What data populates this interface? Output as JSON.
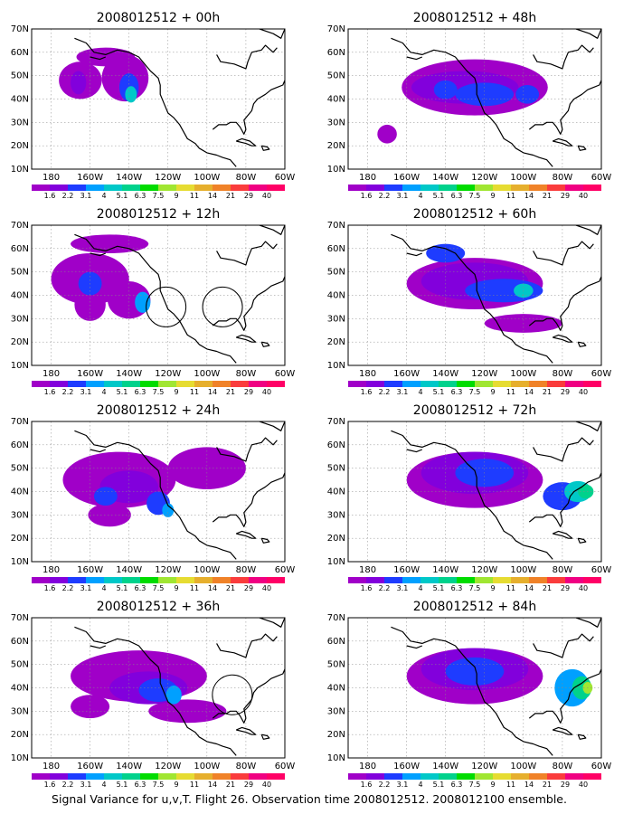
{
  "caption": "Signal Variance for u,v,T. Flight 26. Observation time 2008012512. 2008012100 ensemble.",
  "colorbar": {
    "colors": [
      "#a000c8",
      "#8200dc",
      "#1e3cff",
      "#00a0ff",
      "#00c8c8",
      "#00d28c",
      "#00dc00",
      "#a0e632",
      "#e6dc32",
      "#e6af2d",
      "#f08228",
      "#fa3c3c",
      "#f00082"
    ],
    "labels": [
      "1.6",
      "2.2",
      "3.1",
      "4",
      "5.1",
      "6.3",
      "7.5",
      "9",
      "11",
      "14",
      "21",
      "29",
      "40"
    ]
  },
  "chart_data": {
    "type": "heatmap",
    "map_extent": {
      "lon": [
        "190W",
        "60W"
      ],
      "lat": [
        "10N",
        "70N"
      ]
    },
    "x_tick_labels": [
      "180",
      "160W",
      "140W",
      "120W",
      "100W",
      "80W",
      "60W"
    ],
    "y_tick_labels": [
      "70N",
      "60N",
      "50N",
      "40N",
      "30N",
      "20N",
      "10N"
    ],
    "panels": [
      {
        "title": "2008012512 + 00h",
        "max_level": "7.5",
        "circles": [],
        "blobs": [
          {
            "lon": -165,
            "lat": 48,
            "w": 22,
            "h": 16,
            "level": 1
          },
          {
            "lon": -152,
            "lat": 58,
            "w": 30,
            "h": 8,
            "level": 1
          },
          {
            "lon": -142,
            "lat": 49,
            "w": 24,
            "h": 20,
            "level": 1
          },
          {
            "lon": -140,
            "lat": 45,
            "w": 10,
            "h": 12,
            "level": 3
          },
          {
            "lon": -139,
            "lat": 42,
            "w": 6,
            "h": 7,
            "level": 5
          },
          {
            "lon": -166,
            "lat": 47,
            "w": 8,
            "h": 10,
            "level": 2
          }
        ]
      },
      {
        "title": "2008012512 + 12h",
        "max_level": "6.3",
        "circles": [
          {
            "lon": -121,
            "lat": 35
          },
          {
            "lon": -92,
            "lat": 35
          }
        ],
        "blobs": [
          {
            "lon": -160,
            "lat": 47,
            "w": 40,
            "h": 22,
            "level": 1
          },
          {
            "lon": -160,
            "lat": 36,
            "w": 16,
            "h": 14,
            "level": 1
          },
          {
            "lon": -140,
            "lat": 38,
            "w": 22,
            "h": 16,
            "level": 1
          },
          {
            "lon": -150,
            "lat": 62,
            "w": 40,
            "h": 8,
            "level": 1
          },
          {
            "lon": -160,
            "lat": 45,
            "w": 12,
            "h": 10,
            "level": 3
          },
          {
            "lon": -133,
            "lat": 37,
            "w": 8,
            "h": 9,
            "level": 4
          }
        ]
      },
      {
        "title": "2008012512 + 24h",
        "max_level": "6.3",
        "circles": [],
        "blobs": [
          {
            "lon": -145,
            "lat": 45,
            "w": 58,
            "h": 24,
            "level": 1
          },
          {
            "lon": -150,
            "lat": 30,
            "w": 22,
            "h": 10,
            "level": 1
          },
          {
            "lon": -100,
            "lat": 50,
            "w": 40,
            "h": 18,
            "level": 1
          },
          {
            "lon": -140,
            "lat": 42,
            "w": 30,
            "h": 14,
            "level": 2
          },
          {
            "lon": -152,
            "lat": 38,
            "w": 12,
            "h": 8,
            "level": 3
          },
          {
            "lon": -125,
            "lat": 35,
            "w": 12,
            "h": 10,
            "level": 3
          },
          {
            "lon": -120,
            "lat": 32,
            "w": 6,
            "h": 6,
            "level": 4
          }
        ]
      },
      {
        "title": "2008012512 + 36h",
        "max_level": "6.3",
        "circles": [
          {
            "lon": -87,
            "lat": 37
          }
        ],
        "blobs": [
          {
            "lon": -135,
            "lat": 45,
            "w": 70,
            "h": 22,
            "level": 1
          },
          {
            "lon": -160,
            "lat": 32,
            "w": 20,
            "h": 10,
            "level": 1
          },
          {
            "lon": -110,
            "lat": 30,
            "w": 40,
            "h": 10,
            "level": 1
          },
          {
            "lon": -130,
            "lat": 40,
            "w": 40,
            "h": 14,
            "level": 2
          },
          {
            "lon": -125,
            "lat": 39,
            "w": 20,
            "h": 10,
            "level": 3
          },
          {
            "lon": -117,
            "lat": 37,
            "w": 8,
            "h": 8,
            "level": 4
          }
        ]
      },
      {
        "title": "2008012512 + 48h",
        "max_level": "6.3",
        "circles": [],
        "blobs": [
          {
            "lon": -125,
            "lat": 45,
            "w": 75,
            "h": 24,
            "level": 1
          },
          {
            "lon": -170,
            "lat": 25,
            "w": 10,
            "h": 8,
            "level": 1
          },
          {
            "lon": -130,
            "lat": 45,
            "w": 55,
            "h": 14,
            "level": 2
          },
          {
            "lon": -120,
            "lat": 42,
            "w": 30,
            "h": 10,
            "level": 3
          },
          {
            "lon": -140,
            "lat": 44,
            "w": 12,
            "h": 8,
            "level": 3
          },
          {
            "lon": -98,
            "lat": 42,
            "w": 12,
            "h": 8,
            "level": 3
          }
        ]
      },
      {
        "title": "2008012512 + 60h",
        "max_level": "7.5",
        "circles": [],
        "blobs": [
          {
            "lon": -125,
            "lat": 45,
            "w": 70,
            "h": 22,
            "level": 1
          },
          {
            "lon": -100,
            "lat": 28,
            "w": 40,
            "h": 8,
            "level": 1
          },
          {
            "lon": -125,
            "lat": 46,
            "w": 55,
            "h": 16,
            "level": 2
          },
          {
            "lon": -110,
            "lat": 42,
            "w": 40,
            "h": 10,
            "level": 3
          },
          {
            "lon": -140,
            "lat": 58,
            "w": 20,
            "h": 8,
            "level": 3
          },
          {
            "lon": -100,
            "lat": 42,
            "w": 10,
            "h": 6,
            "level": 5
          }
        ]
      },
      {
        "title": "2008012512 + 72h",
        "max_level": "9",
        "circles": [],
        "blobs": [
          {
            "lon": -125,
            "lat": 45,
            "w": 70,
            "h": 24,
            "level": 1
          },
          {
            "lon": -125,
            "lat": 48,
            "w": 55,
            "h": 18,
            "level": 2
          },
          {
            "lon": -120,
            "lat": 48,
            "w": 30,
            "h": 12,
            "level": 3
          },
          {
            "lon": -80,
            "lat": 38,
            "w": 20,
            "h": 12,
            "level": 3
          },
          {
            "lon": -72,
            "lat": 40,
            "w": 14,
            "h": 9,
            "level": 5
          },
          {
            "lon": -68,
            "lat": 40,
            "w": 8,
            "h": 6,
            "level": 6
          }
        ]
      },
      {
        "title": "2008012512 + 84h",
        "max_level": "11",
        "circles": [],
        "blobs": [
          {
            "lon": -125,
            "lat": 45,
            "w": 70,
            "h": 24,
            "level": 1
          },
          {
            "lon": -125,
            "lat": 48,
            "w": 55,
            "h": 18,
            "level": 2
          },
          {
            "lon": -125,
            "lat": 47,
            "w": 30,
            "h": 12,
            "level": 3
          },
          {
            "lon": -75,
            "lat": 40,
            "w": 18,
            "h": 16,
            "level": 4
          },
          {
            "lon": -70,
            "lat": 40,
            "w": 10,
            "h": 10,
            "level": 6
          },
          {
            "lon": -67,
            "lat": 40,
            "w": 5,
            "h": 5,
            "level": 8
          }
        ]
      }
    ]
  }
}
